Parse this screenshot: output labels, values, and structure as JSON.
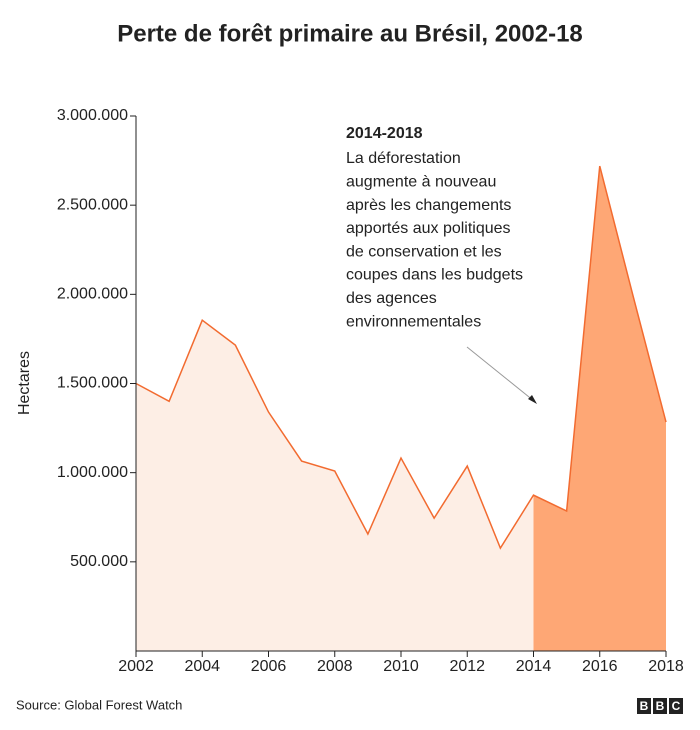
{
  "chart_data": {
    "type": "area",
    "title": "Perte de forêt primaire au Brésil, 2002-18",
    "y_label": "Hectares",
    "x": [
      2002,
      2003,
      2004,
      2005,
      2006,
      2007,
      2008,
      2009,
      2010,
      2011,
      2012,
      2013,
      2014,
      2015,
      2016,
      2017,
      2018
    ],
    "series": [
      {
        "color": "#f26b30",
        "fill": "#fdeee5",
        "values": [
          1500000,
          1400000,
          1855000,
          1715000,
          1340000,
          1065000,
          1009000,
          656000,
          1082000,
          745000,
          1037000,
          577000,
          874000,
          785000,
          2719000,
          1995000,
          1284000
        ]
      }
    ],
    "highlight": {
      "from": 2014,
      "color": "#fea775"
    },
    "xlim": [
      2002,
      2018
    ],
    "xticks": [
      2002,
      2004,
      2006,
      2008,
      2010,
      2012,
      2014,
      2016,
      2018
    ],
    "ylim": [
      0,
      3000000
    ],
    "yticks": [
      {
        "value": 500000,
        "label": "500.000"
      },
      {
        "value": 1000000,
        "label": "1.000.000"
      },
      {
        "value": 1500000,
        "label": "1.500.000"
      },
      {
        "value": 2000000,
        "label": "2.000.000"
      },
      {
        "value": 2500000,
        "label": "2.500.000"
      },
      {
        "value": 3000000,
        "label": "3.000.000"
      }
    ],
    "annotation": {
      "title": "2014-2018",
      "lines": [
        "La déforestation",
        "augmente à nouveau",
        "après les changements",
        "apportés aux politiques",
        "de conservation et les",
        "coupes dans les budgets",
        "des agences",
        "environnementales"
      ]
    },
    "source": "Source: Global Forest Watch",
    "logo": [
      "B",
      "B",
      "C"
    ]
  }
}
